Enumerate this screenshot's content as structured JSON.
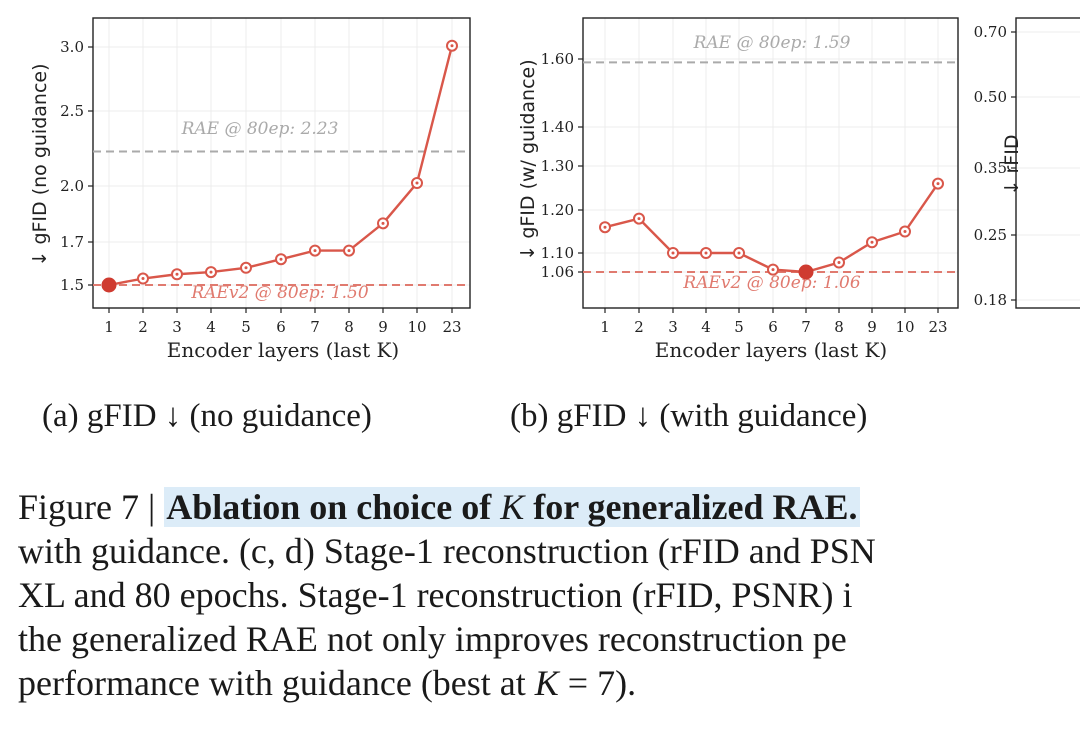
{
  "chart_data": [
    {
      "type": "line",
      "id": "a",
      "categories": [
        "1",
        "2",
        "3",
        "4",
        "5",
        "6",
        "7",
        "8",
        "9",
        "10",
        "23"
      ],
      "values": [
        1.5,
        1.53,
        1.55,
        1.56,
        1.58,
        1.62,
        1.66,
        1.66,
        1.8,
        2.02,
        3.01
      ],
      "ylabel": "↓ gFID (no guidance)",
      "xlabel": "Encoder layers (last K)",
      "yticks": [
        "1.5",
        "1.7",
        "2.0",
        "2.5",
        "3.0"
      ],
      "ylim": [
        1.42,
        3.1
      ],
      "yscale": "nonlinear",
      "highlight_index": 0,
      "reference_lines": [
        {
          "label": "RAE @ 80ep: 2.23",
          "value": 2.23,
          "color": "#aaaaaa"
        },
        {
          "label": "RAEv2 @ 80ep: 1.50",
          "value": 1.5,
          "color": "#e07a6f"
        }
      ],
      "grid": true
    },
    {
      "type": "line",
      "id": "b",
      "categories": [
        "1",
        "2",
        "3",
        "4",
        "5",
        "6",
        "7",
        "8",
        "9",
        "10",
        "23"
      ],
      "values": [
        1.16,
        1.18,
        1.1,
        1.1,
        1.1,
        1.065,
        1.06,
        1.08,
        1.125,
        1.15,
        1.26
      ],
      "ylabel": "↓ gFID (w/ guidance)",
      "xlabel": "Encoder layers (last K)",
      "yticks": [
        "1.06",
        "1.10",
        "1.20",
        "1.30",
        "1.40",
        "1.60"
      ],
      "ylim": [
        1.0,
        1.65
      ],
      "yscale": "nonlinear",
      "highlight_index": 6,
      "reference_lines": [
        {
          "label": "RAE @ 80ep: 1.59",
          "value": 1.59,
          "color": "#aaaaaa"
        },
        {
          "label": "RAEv2 @ 80ep: 1.06",
          "value": 1.06,
          "color": "#e07a6f"
        }
      ],
      "grid": true
    },
    {
      "type": "line",
      "id": "c",
      "partial": true,
      "ylabel": "↓ rFID",
      "yticks": [
        "0.18",
        "0.25",
        "0.35",
        "0.50",
        "0.70"
      ],
      "grid": true
    }
  ],
  "colors": {
    "series": "#d9574a",
    "highlight": "#cf3b30",
    "ref_gray": "#aaaaaa",
    "ref_red": "#e07a6f",
    "caption_highlight": "#dcecf8"
  },
  "subcaptions": {
    "a": "(a) gFID ↓ (no guidance)",
    "b": "(b) gFID ↓ (with guidance)"
  },
  "caption": {
    "prefix": "Figure 7 | ",
    "bold_1": "Ablation on choice of ",
    "bold_var": "K",
    "bold_2": " for generalized RAE.",
    "line2": "with guidance. (c, d) Stage-1 reconstruction (rFID and PSN",
    "line3": "XL and 80 epochs. Stage-1 reconstruction (rFID, PSNR) i",
    "line4": "the generalized RAE not only improves reconstruction pe",
    "line5_a": "performance with guidance (best at ",
    "line5_var": "K",
    "line5_b": " = 7)."
  }
}
